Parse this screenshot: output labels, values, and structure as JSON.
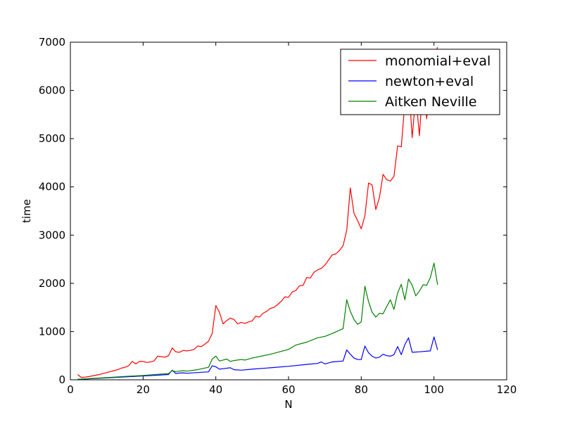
{
  "chart_data": {
    "type": "line",
    "title": "",
    "xlabel": "N",
    "ylabel": "time",
    "xlim": [
      0,
      120
    ],
    "ylim": [
      0,
      7000
    ],
    "xticks": [
      0,
      20,
      40,
      60,
      80,
      100,
      120
    ],
    "yticks": [
      0,
      1000,
      2000,
      3000,
      4000,
      5000,
      6000,
      7000
    ],
    "grid": false,
    "legend_position": "top-right",
    "series": [
      {
        "name": "monomial+eval",
        "color": "#ff0000",
        "points": [
          [
            2,
            110
          ],
          [
            3,
            50
          ],
          [
            4,
            55
          ],
          [
            5,
            65
          ],
          [
            6,
            80
          ],
          [
            7,
            95
          ],
          [
            8,
            110
          ],
          [
            9,
            130
          ],
          [
            10,
            150
          ],
          [
            11,
            170
          ],
          [
            12,
            190
          ],
          [
            13,
            210
          ],
          [
            14,
            240
          ],
          [
            15,
            260
          ],
          [
            16,
            290
          ],
          [
            17,
            380
          ],
          [
            18,
            330
          ],
          [
            19,
            380
          ],
          [
            20,
            380
          ],
          [
            21,
            360
          ],
          [
            22,
            370
          ],
          [
            23,
            390
          ],
          [
            24,
            490
          ],
          [
            25,
            480
          ],
          [
            26,
            470
          ],
          [
            27,
            500
          ],
          [
            28,
            660
          ],
          [
            29,
            580
          ],
          [
            30,
            570
          ],
          [
            31,
            610
          ],
          [
            32,
            600
          ],
          [
            33,
            610
          ],
          [
            34,
            630
          ],
          [
            35,
            700
          ],
          [
            36,
            690
          ],
          [
            37,
            740
          ],
          [
            38,
            800
          ],
          [
            39,
            960
          ],
          [
            40,
            1540
          ],
          [
            41,
            1400
          ],
          [
            42,
            1160
          ],
          [
            43,
            1230
          ],
          [
            44,
            1280
          ],
          [
            45,
            1250
          ],
          [
            46,
            1160
          ],
          [
            47,
            1190
          ],
          [
            48,
            1170
          ],
          [
            49,
            1200
          ],
          [
            50,
            1220
          ],
          [
            51,
            1320
          ],
          [
            52,
            1300
          ],
          [
            53,
            1380
          ],
          [
            54,
            1420
          ],
          [
            55,
            1480
          ],
          [
            56,
            1500
          ],
          [
            57,
            1560
          ],
          [
            58,
            1630
          ],
          [
            59,
            1720
          ],
          [
            60,
            1710
          ],
          [
            61,
            1820
          ],
          [
            62,
            1850
          ],
          [
            63,
            1950
          ],
          [
            64,
            1960
          ],
          [
            65,
            2120
          ],
          [
            66,
            2110
          ],
          [
            67,
            2230
          ],
          [
            68,
            2280
          ],
          [
            69,
            2310
          ],
          [
            70,
            2380
          ],
          [
            71,
            2480
          ],
          [
            72,
            2590
          ],
          [
            73,
            2610
          ],
          [
            74,
            2680
          ],
          [
            75,
            2780
          ],
          [
            76,
            3100
          ],
          [
            77,
            3980
          ],
          [
            78,
            3450
          ],
          [
            79,
            3300
          ],
          [
            80,
            3130
          ],
          [
            81,
            3400
          ],
          [
            82,
            4080
          ],
          [
            83,
            4040
          ],
          [
            84,
            3530
          ],
          [
            85,
            3780
          ],
          [
            86,
            4260
          ],
          [
            87,
            4150
          ],
          [
            88,
            4120
          ],
          [
            89,
            4220
          ],
          [
            90,
            4850
          ],
          [
            91,
            4830
          ],
          [
            92,
            5750
          ],
          [
            93,
            6200
          ],
          [
            94,
            5020
          ],
          [
            95,
            5900
          ],
          [
            96,
            5060
          ],
          [
            97,
            6250
          ],
          [
            98,
            5410
          ],
          [
            99,
            6400
          ],
          [
            100,
            6700
          ],
          [
            101,
            6900
          ]
        ]
      },
      {
        "name": "newton+eval",
        "color": "#0000ff",
        "points": [
          [
            2,
            10
          ],
          [
            5,
            20
          ],
          [
            10,
            40
          ],
          [
            15,
            60
          ],
          [
            20,
            80
          ],
          [
            25,
            100
          ],
          [
            27,
            110
          ],
          [
            28,
            200
          ],
          [
            29,
            130
          ],
          [
            30,
            140
          ],
          [
            31,
            145
          ],
          [
            32,
            135
          ],
          [
            35,
            150
          ],
          [
            38,
            165
          ],
          [
            39,
            290
          ],
          [
            40,
            270
          ],
          [
            41,
            220
          ],
          [
            42,
            230
          ],
          [
            44,
            250
          ],
          [
            45,
            210
          ],
          [
            47,
            200
          ],
          [
            50,
            220
          ],
          [
            55,
            250
          ],
          [
            60,
            280
          ],
          [
            65,
            320
          ],
          [
            68,
            340
          ],
          [
            69,
            370
          ],
          [
            70,
            330
          ],
          [
            72,
            370
          ],
          [
            75,
            390
          ],
          [
            76,
            620
          ],
          [
            77,
            530
          ],
          [
            78,
            450
          ],
          [
            79,
            420
          ],
          [
            80,
            420
          ],
          [
            81,
            700
          ],
          [
            82,
            560
          ],
          [
            83,
            490
          ],
          [
            84,
            450
          ],
          [
            85,
            470
          ],
          [
            86,
            530
          ],
          [
            87,
            500
          ],
          [
            88,
            490
          ],
          [
            89,
            520
          ],
          [
            90,
            690
          ],
          [
            91,
            520
          ],
          [
            92,
            730
          ],
          [
            93,
            870
          ],
          [
            94,
            570
          ],
          [
            96,
            580
          ],
          [
            99,
            600
          ],
          [
            100,
            890
          ],
          [
            101,
            620
          ]
        ]
      },
      {
        "name": "Aitken Neville",
        "color": "#008000",
        "points": [
          [
            2,
            10
          ],
          [
            5,
            25
          ],
          [
            10,
            45
          ],
          [
            15,
            70
          ],
          [
            20,
            90
          ],
          [
            25,
            120
          ],
          [
            27,
            130
          ],
          [
            28,
            190
          ],
          [
            29,
            170
          ],
          [
            30,
            180
          ],
          [
            31,
            190
          ],
          [
            32,
            180
          ],
          [
            35,
            210
          ],
          [
            38,
            260
          ],
          [
            39,
            430
          ],
          [
            40,
            490
          ],
          [
            41,
            390
          ],
          [
            42,
            410
          ],
          [
            43,
            430
          ],
          [
            44,
            380
          ],
          [
            45,
            400
          ],
          [
            47,
            420
          ],
          [
            48,
            410
          ],
          [
            50,
            450
          ],
          [
            55,
            530
          ],
          [
            60,
            630
          ],
          [
            62,
            720
          ],
          [
            65,
            780
          ],
          [
            68,
            870
          ],
          [
            70,
            900
          ],
          [
            72,
            960
          ],
          [
            75,
            1060
          ],
          [
            76,
            1660
          ],
          [
            77,
            1420
          ],
          [
            78,
            1250
          ],
          [
            79,
            1150
          ],
          [
            80,
            1200
          ],
          [
            81,
            1940
          ],
          [
            82,
            1620
          ],
          [
            83,
            1400
          ],
          [
            84,
            1300
          ],
          [
            85,
            1380
          ],
          [
            86,
            1370
          ],
          [
            87,
            1520
          ],
          [
            88,
            1660
          ],
          [
            89,
            1460
          ],
          [
            90,
            1800
          ],
          [
            91,
            1980
          ],
          [
            92,
            1660
          ],
          [
            93,
            2090
          ],
          [
            94,
            1960
          ],
          [
            95,
            1740
          ],
          [
            96,
            1840
          ],
          [
            97,
            1970
          ],
          [
            98,
            1960
          ],
          [
            99,
            2120
          ],
          [
            100,
            2420
          ],
          [
            101,
            1970
          ]
        ]
      }
    ]
  }
}
